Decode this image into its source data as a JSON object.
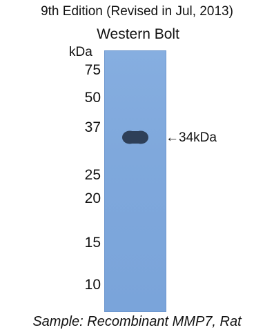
{
  "header": {
    "edition": "9th Edition (Revised in Jul, 2013)",
    "title": "Western Bolt"
  },
  "axis": {
    "unit": "kDa",
    "markers": [
      "75",
      "50",
      "37",
      "25",
      "20",
      "15",
      "10"
    ]
  },
  "band": {
    "label": "←34kDa"
  },
  "caption": {
    "sample": "Sample: Recombinant MMP7, Rat"
  },
  "colors": {
    "membrane": "#7fa8dc",
    "band": "#2e3f58"
  }
}
